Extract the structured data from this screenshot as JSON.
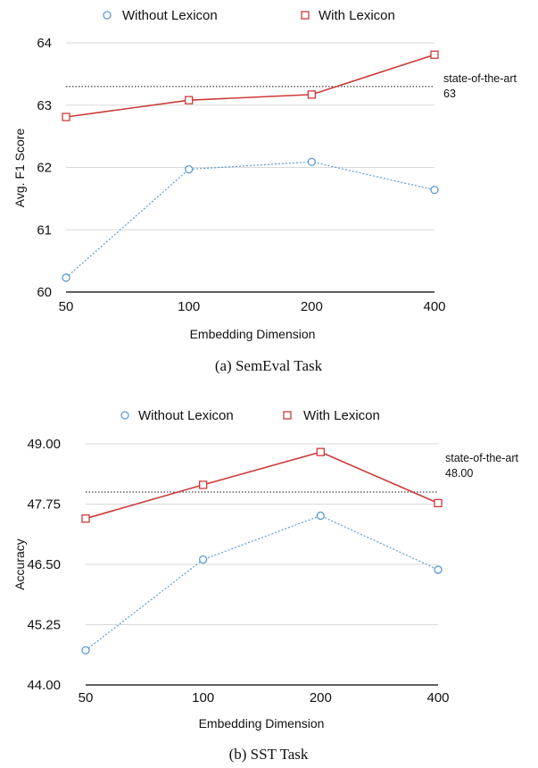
{
  "chart_data": [
    {
      "type": "line",
      "caption": "(a)  SemEval Task",
      "xlabel": "Embedding Dimension",
      "ylabel": "Avg. F1 Score",
      "categories": [
        "50",
        "100",
        "200",
        "400"
      ],
      "ylim": [
        60,
        64
      ],
      "yticks": [
        "60",
        "61",
        "62",
        "63",
        "64"
      ],
      "grid": true,
      "legend_position": "top",
      "series": [
        {
          "name": "Without Lexicon",
          "values": [
            60.23,
            61.97,
            62.09,
            61.64
          ],
          "color": "#5b9bd5",
          "marker": "circle",
          "dashed": true
        },
        {
          "name": "With Lexicon",
          "values": [
            62.81,
            63.08,
            63.17,
            63.81
          ],
          "color": "#cc3a3a",
          "marker": "square",
          "dashed": false
        }
      ],
      "reference": {
        "value": 63.3,
        "label": "state-of-the-art",
        "value_label": "63"
      }
    },
    {
      "type": "line",
      "caption": "(b)  SST Task",
      "xlabel": "Embedding Dimension",
      "ylabel": "Accuracy",
      "categories": [
        "50",
        "100",
        "200",
        "400"
      ],
      "ylim": [
        44.0,
        49.0
      ],
      "yticks": [
        "44.00",
        "45.25",
        "46.50",
        "47.75",
        "49.00"
      ],
      "grid": true,
      "legend_position": "top",
      "series": [
        {
          "name": "Without Lexicon",
          "values": [
            44.72,
            46.6,
            47.51,
            46.39
          ],
          "color": "#5b9bd5",
          "marker": "circle",
          "dashed": true
        },
        {
          "name": "With Lexicon",
          "values": [
            47.45,
            48.15,
            48.83,
            47.77
          ],
          "color": "#cc3a3a",
          "marker": "square",
          "dashed": false
        }
      ],
      "reference": {
        "value": 48.0,
        "label": "state-of-the-art",
        "value_label": "48.00"
      }
    }
  ]
}
